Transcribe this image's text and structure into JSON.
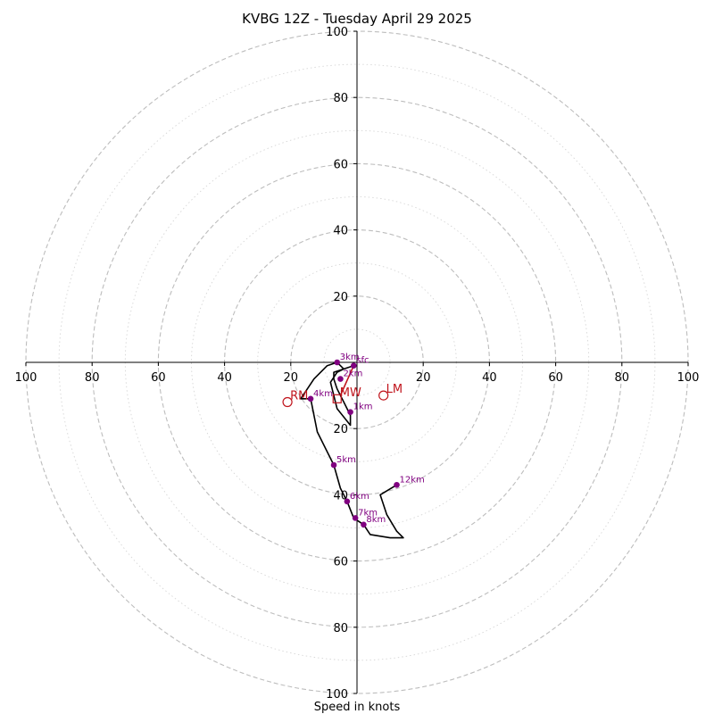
{
  "chart_data": {
    "type": "hodograph",
    "title": "KVBG 12Z - Tuesday April 29 2025",
    "xlabel": "Speed in knots",
    "units": "knots",
    "max_speed": 100,
    "major_rings": [
      20,
      40,
      60,
      80,
      100
    ],
    "minor_rings": [
      10,
      30,
      50,
      70,
      90
    ],
    "axis_ticks": [
      20,
      40,
      60,
      80,
      100
    ],
    "grid": true,
    "line_color": "#000000",
    "height_point_color": "#800080",
    "motion_color": "#c0141c",
    "trace": [
      {
        "u": -1,
        "v": -1
      },
      {
        "u": -4,
        "v": -2
      },
      {
        "u": -7,
        "v": -3
      },
      {
        "u": -7,
        "v": -5
      },
      {
        "u": -6,
        "v": -8
      },
      {
        "u": -4,
        "v": -12
      },
      {
        "u": -2,
        "v": -16
      },
      {
        "u": -2,
        "v": -19
      },
      {
        "u": -6,
        "v": -14
      },
      {
        "u": -8,
        "v": -6
      },
      {
        "u": -6,
        "v": -3
      },
      {
        "u": -4,
        "v": -2
      },
      {
        "u": -6,
        "v": 0
      },
      {
        "u": -9,
        "v": -1
      },
      {
        "u": -13,
        "v": -5
      },
      {
        "u": -15,
        "v": -8
      },
      {
        "u": -17,
        "v": -11
      },
      {
        "u": -14,
        "v": -11
      },
      {
        "u": -12,
        "v": -21
      },
      {
        "u": -7,
        "v": -31
      },
      {
        "u": -5,
        "v": -38
      },
      {
        "u": -3,
        "v": -42
      },
      {
        "u": -1,
        "v": -47
      },
      {
        "u": 2,
        "v": -49
      },
      {
        "u": 4,
        "v": -52
      },
      {
        "u": 10,
        "v": -53
      },
      {
        "u": 14,
        "v": -53
      },
      {
        "u": 12,
        "v": -51
      },
      {
        "u": 9,
        "v": -46
      },
      {
        "u": 7,
        "v": -40
      },
      {
        "u": 12,
        "v": -37
      }
    ],
    "height_points": [
      {
        "label": "sfc",
        "u": -1,
        "v": -1
      },
      {
        "label": "1km",
        "u": -2,
        "v": -15
      },
      {
        "label": "2km",
        "u": -5,
        "v": -5
      },
      {
        "label": "3km",
        "u": -6,
        "v": 0
      },
      {
        "label": "4km",
        "u": -14,
        "v": -11
      },
      {
        "label": "5km",
        "u": -7,
        "v": -31
      },
      {
        "label": "6km",
        "u": -3,
        "v": -42
      },
      {
        "label": "7km",
        "u": -0.5,
        "v": -47
      },
      {
        "label": "8km",
        "u": 2,
        "v": -49
      },
      {
        "label": "12km",
        "u": 12,
        "v": -37
      }
    ],
    "storm_motion": {
      "mean_wind_line": [
        {
          "u": -1,
          "v": -1
        },
        {
          "u": -5,
          "v": -10
        }
      ],
      "markers": [
        {
          "label": "RM",
          "u": -21,
          "v": -12,
          "shape": "circle"
        },
        {
          "label": "LM",
          "u": 8,
          "v": -10,
          "shape": "circle"
        },
        {
          "label": "MW",
          "u": -6,
          "v": -11,
          "shape": "square"
        }
      ]
    }
  }
}
